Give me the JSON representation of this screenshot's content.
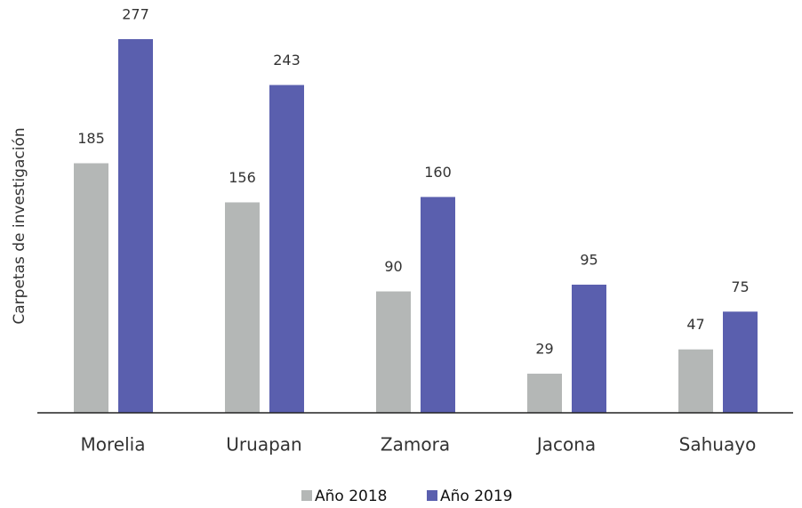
{
  "chart_data": {
    "type": "bar",
    "y_label": "Carpetas de investigación",
    "categories": [
      "Morelia",
      "Uruapan",
      "Zamora",
      "Jacona",
      "Sahuayo"
    ],
    "series": [
      {
        "name": "Año 2018",
        "color": "#b4b7b6",
        "values": [
          185,
          156,
          90,
          29,
          47
        ]
      },
      {
        "name": "Año 2019",
        "color": "#5a5fae",
        "values": [
          277,
          243,
          160,
          95,
          75
        ]
      }
    ],
    "legend": "bottom"
  }
}
